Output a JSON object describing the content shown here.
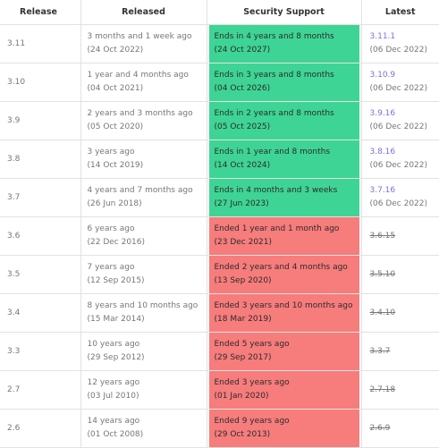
{
  "headers": {
    "release": "Release",
    "released": "Released",
    "support": "Security Support",
    "latest": "Latest"
  },
  "rows": [
    {
      "release": "3.11",
      "released_ago": "3 months and 1 week ago",
      "released_date": "(24 Oct 2022)",
      "support_text": "Ends in 4 years and 8 months",
      "support_date": "(24 Oct 2027)",
      "status": "active",
      "latest": "3.11.1",
      "latest_date": "(06 Dec 2022)"
    },
    {
      "release": "3.10",
      "released_ago": "1 year and 4 months ago",
      "released_date": "(04 Oct 2021)",
      "support_text": "Ends in 3 years and 8 months",
      "support_date": "(04 Oct 2026)",
      "status": "active",
      "latest": "3.10.9",
      "latest_date": "(06 Dec 2022)"
    },
    {
      "release": "3.9",
      "released_ago": "2 years and 3 months ago",
      "released_date": "(05 Oct 2020)",
      "support_text": "Ends in 2 years and 8 months",
      "support_date": "(05 Oct 2025)",
      "status": "active",
      "latest": "3.9.16",
      "latest_date": "(06 Dec 2022)"
    },
    {
      "release": "3.8",
      "released_ago": "3 years ago",
      "released_date": "(14 Oct 2019)",
      "support_text": "Ends in 1 year and 8 months",
      "support_date": "(14 Oct 2024)",
      "status": "active",
      "latest": "3.8.16",
      "latest_date": "(06 Dec 2022)"
    },
    {
      "release": "3.7",
      "released_ago": "4 years and 7 months ago",
      "released_date": "(26 Jun 2018)",
      "support_text": "Ends in 4 months and 3 weeks",
      "support_date": "(27 Jun 2023)",
      "status": "active",
      "latest": "3.7.16",
      "latest_date": "(06 Dec 2022)"
    },
    {
      "release": "3.6",
      "released_ago": "6 years ago",
      "released_date": "(22 Dec 2016)",
      "support_text": "Ended 1 year and 1 month ago",
      "support_date": "(23 Dec 2021)",
      "status": "eol",
      "latest": "3.6.15",
      "latest_date": ""
    },
    {
      "release": "3.5",
      "released_ago": "7 years ago",
      "released_date": "(12 Sep 2015)",
      "support_text": "Ended 2 years and 4 months ago",
      "support_date": "(13 Sep 2020)",
      "status": "eol",
      "latest": "3.5.10",
      "latest_date": ""
    },
    {
      "release": "3.4",
      "released_ago": "8 years and 10 months ago",
      "released_date": "(15 Mar 2014)",
      "support_text": "Ended 3 years and 10 months ago",
      "support_date": "(18 Mar 2019)",
      "status": "eol",
      "latest": "3.4.10",
      "latest_date": ""
    },
    {
      "release": "3.3",
      "released_ago": "10 years ago",
      "released_date": "(29 Sep 2012)",
      "support_text": "Ended 5 years ago",
      "support_date": "(29 Sep 2017)",
      "status": "eol",
      "latest": "3.3.7",
      "latest_date": ""
    },
    {
      "release": "2.7",
      "released_ago": "12 years ago",
      "released_date": "(03 Jul 2010)",
      "support_text": "Ended 3 years ago",
      "support_date": "(01 Jan 2020)",
      "status": "eol",
      "latest": "2.7.18",
      "latest_date": ""
    },
    {
      "release": "2.6",
      "released_ago": "14 years ago",
      "released_date": "(01 Oct 2008)",
      "support_text": "Ended 9 years ago",
      "support_date": "(29 Oct 2013)",
      "status": "eol",
      "latest": "2.6.9",
      "latest_date": ""
    }
  ],
  "colors": {
    "active": "#3ed495",
    "eol": "#f77c7c",
    "link": "#7a6fe6"
  }
}
